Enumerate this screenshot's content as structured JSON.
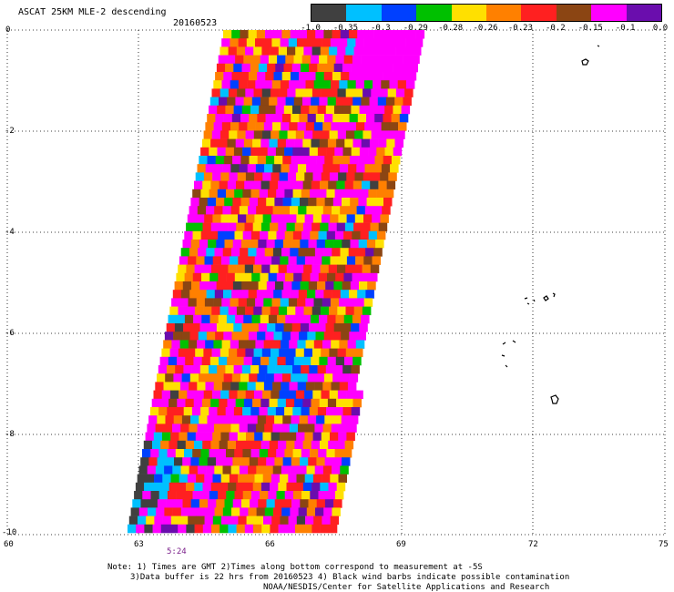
{
  "header": {
    "title": "ASCAT 25KM MLE-2 descending",
    "date": "20160523"
  },
  "legend": {
    "colors": [
      "#404040",
      "#00c0ff",
      "#0040ff",
      "#00c000",
      "#ffe000",
      "#ff8000",
      "#ff2020",
      "#8b4513",
      "#ff00ff",
      "#6a0dad"
    ],
    "ticks": [
      "-1.0",
      "-0.35",
      "-0.3",
      "-0.29",
      "-0.28",
      "-0.26",
      "-0.23",
      "-0.2",
      "-0.15",
      "-0.1",
      "0.0"
    ]
  },
  "map": {
    "lon_range": [
      60,
      75
    ],
    "lat_range": [
      -10,
      0
    ],
    "x_ticks": [
      "60",
      "63",
      "66",
      "69",
      "72",
      "75"
    ],
    "y_ticks": [
      "0",
      "-2",
      "-4",
      "-6",
      "-8",
      "-10"
    ],
    "time_label": "5:24"
  },
  "notes": [
    "Note: 1) Times are GMT 2)Times along bottom correspond to measurement at -5S",
    "3)Data buffer is 22 hrs from 20160523 4) Black wind barbs indicate possible contamination",
    "NOAA/NESDIS/Center for Satellite Applications and Research"
  ]
}
